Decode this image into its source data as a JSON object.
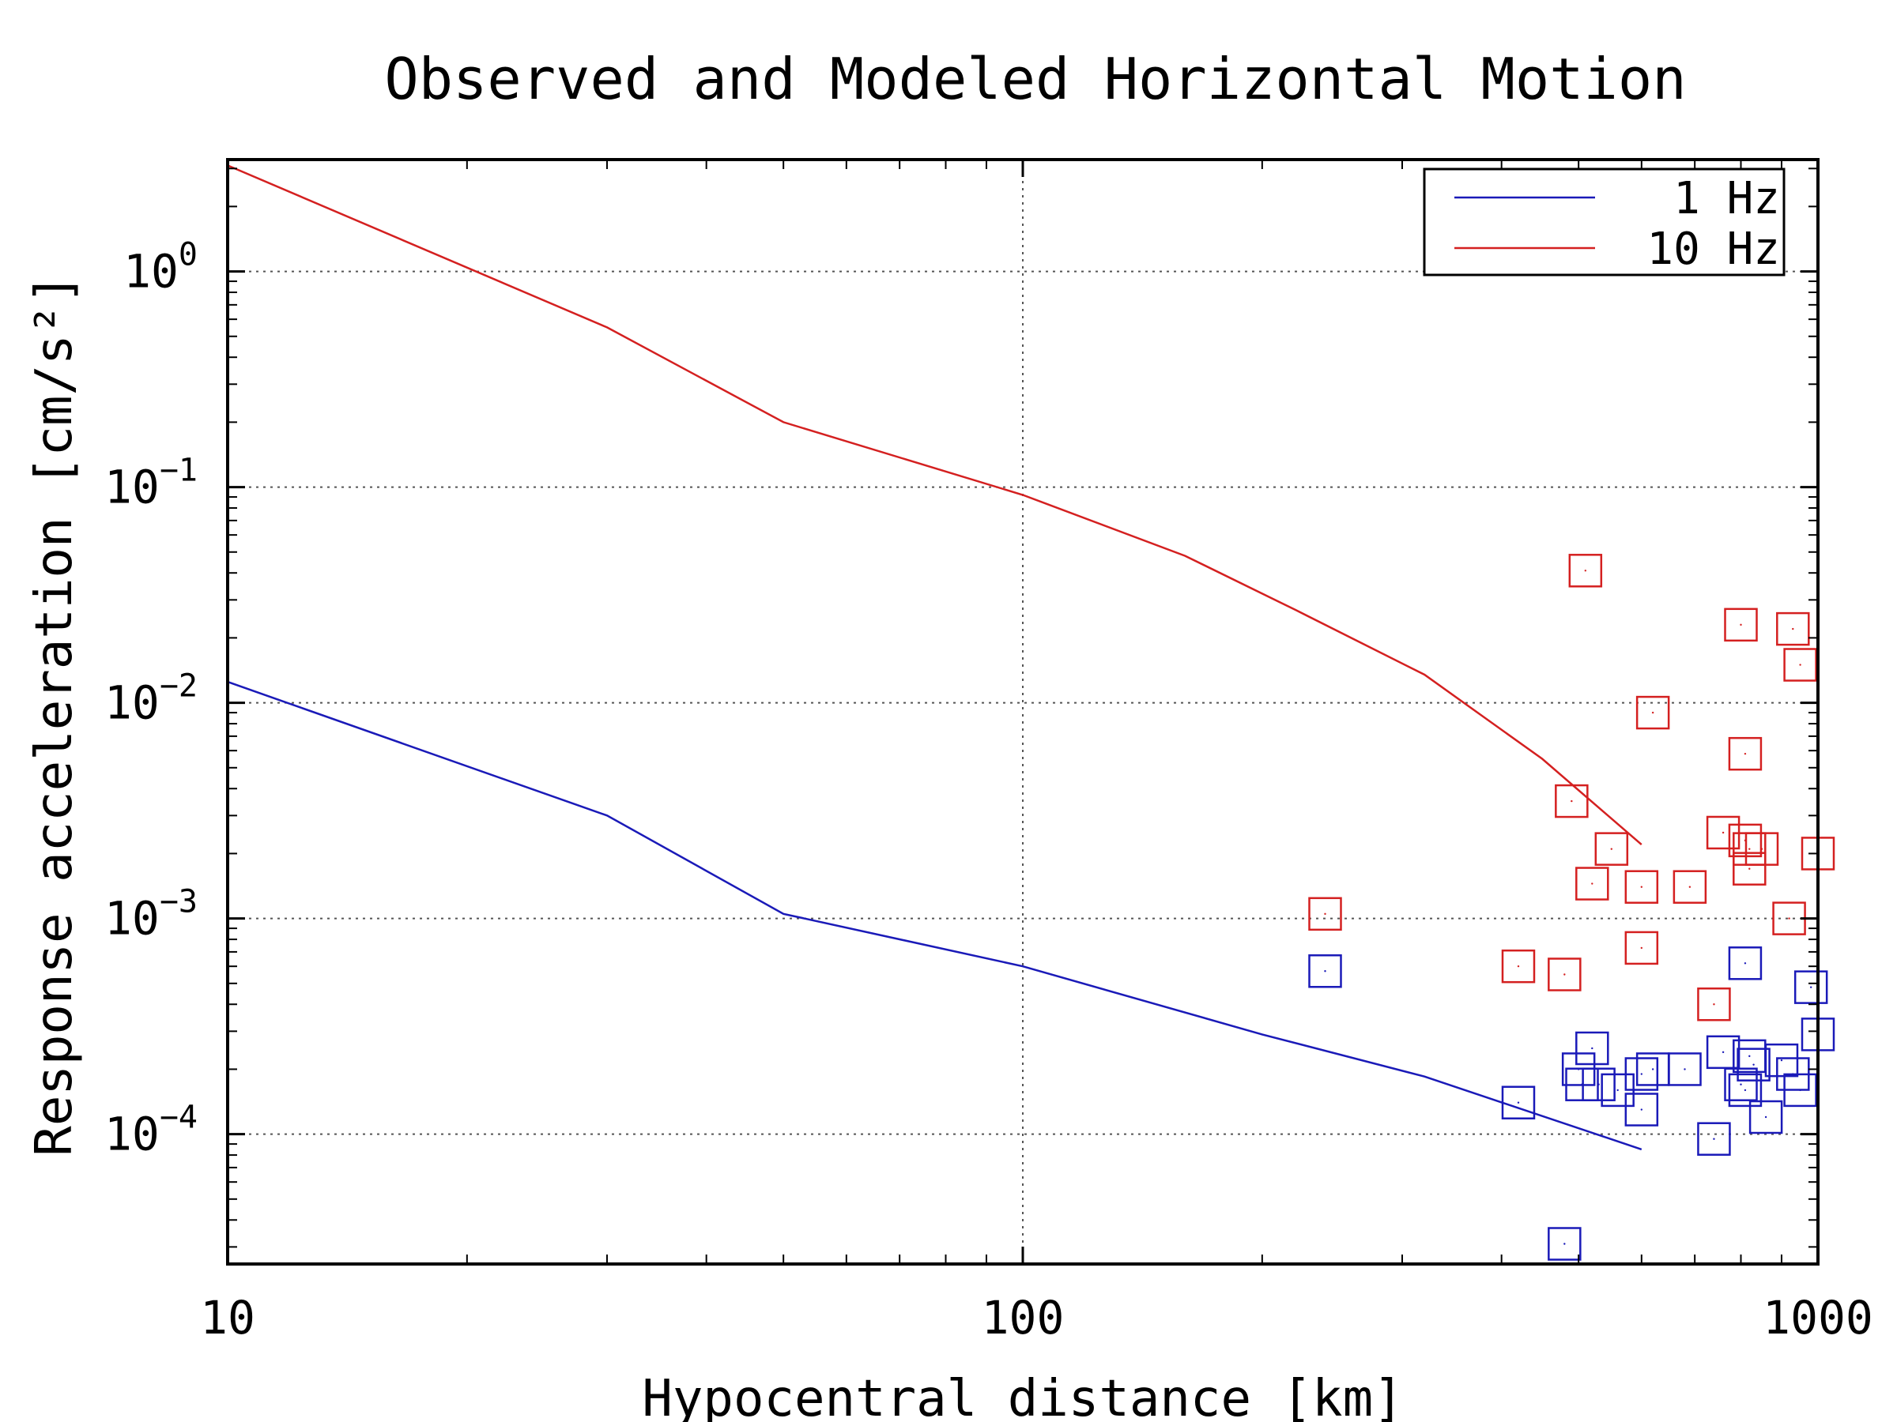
{
  "chart_data": {
    "type": "scatter",
    "title": "Observed and Modeled Horizontal Motion",
    "xlabel": "Hypocentral distance [km]",
    "ylabel": "Response acceleration [cm/s²]",
    "x_scale": "log",
    "y_scale": "log",
    "xlim": [
      10,
      1000
    ],
    "ylim": [
      2.5e-05,
      3.3
    ],
    "grid": true,
    "legend_position": "top-right",
    "x_ticks": [
      {
        "value": 10,
        "label": "10"
      },
      {
        "value": 100,
        "label": "100"
      },
      {
        "value": 1000,
        "label": "1000"
      }
    ],
    "y_ticks": [
      {
        "value": 1,
        "base": "10",
        "exp": "0"
      },
      {
        "value": 0.1,
        "base": "10",
        "exp": "−1"
      },
      {
        "value": 0.01,
        "base": "10",
        "exp": "−2"
      },
      {
        "value": 0.001,
        "base": "10",
        "exp": "−3"
      },
      {
        "value": 0.0001,
        "base": "10",
        "exp": "−4"
      }
    ],
    "series": [
      {
        "name": "1 Hz",
        "color": "#1a1ab8",
        "kind": "line",
        "x": [
          10,
          30,
          50,
          100,
          200,
          320,
          600
        ],
        "y": [
          0.0125,
          0.003,
          0.00105,
          0.0006,
          0.00029,
          0.000185,
          8.5e-05
        ]
      },
      {
        "name": "10 Hz",
        "color": "#d42020",
        "kind": "line",
        "x": [
          10,
          30,
          50,
          100,
          160,
          220,
          320,
          450,
          600
        ],
        "y": [
          3.1,
          0.55,
          0.2,
          0.092,
          0.048,
          0.027,
          0.0135,
          0.0055,
          0.0022
        ]
      },
      {
        "name": "",
        "color": "#1a1ab8",
        "kind": "markers",
        "x": [
          240,
          420,
          480,
          500,
          505,
          520,
          530,
          560,
          600,
          600,
          620,
          680,
          740,
          760,
          800,
          810,
          810,
          820,
          830,
          860,
          900,
          930,
          950,
          980,
          1000
        ],
        "y": [
          0.00057,
          0.00014,
          3.1e-05,
          0.0002,
          0.00017,
          0.00025,
          0.00017,
          0.00016,
          0.00013,
          0.00019,
          0.0002,
          0.0002,
          9.5e-05,
          0.00024,
          0.00017,
          0.00062,
          0.00016,
          0.00023,
          0.00021,
          0.00012,
          0.00022,
          0.00019,
          0.00016,
          0.00048,
          0.00029
        ]
      },
      {
        "name": "",
        "color": "#d42020",
        "kind": "markers",
        "x": [
          240,
          420,
          480,
          490,
          510,
          520,
          550,
          600,
          600,
          620,
          690,
          740,
          760,
          800,
          810,
          810,
          820,
          820,
          850,
          920,
          930,
          950,
          1000
        ],
        "y": [
          0.00105,
          0.0006,
          0.00055,
          0.0035,
          0.041,
          0.00145,
          0.0021,
          0.00073,
          0.0014,
          0.009,
          0.0014,
          0.0004,
          0.0025,
          0.023,
          0.0058,
          0.0023,
          0.0021,
          0.0017,
          0.0021,
          0.001,
          0.022,
          0.015,
          0.002
        ]
      }
    ]
  }
}
